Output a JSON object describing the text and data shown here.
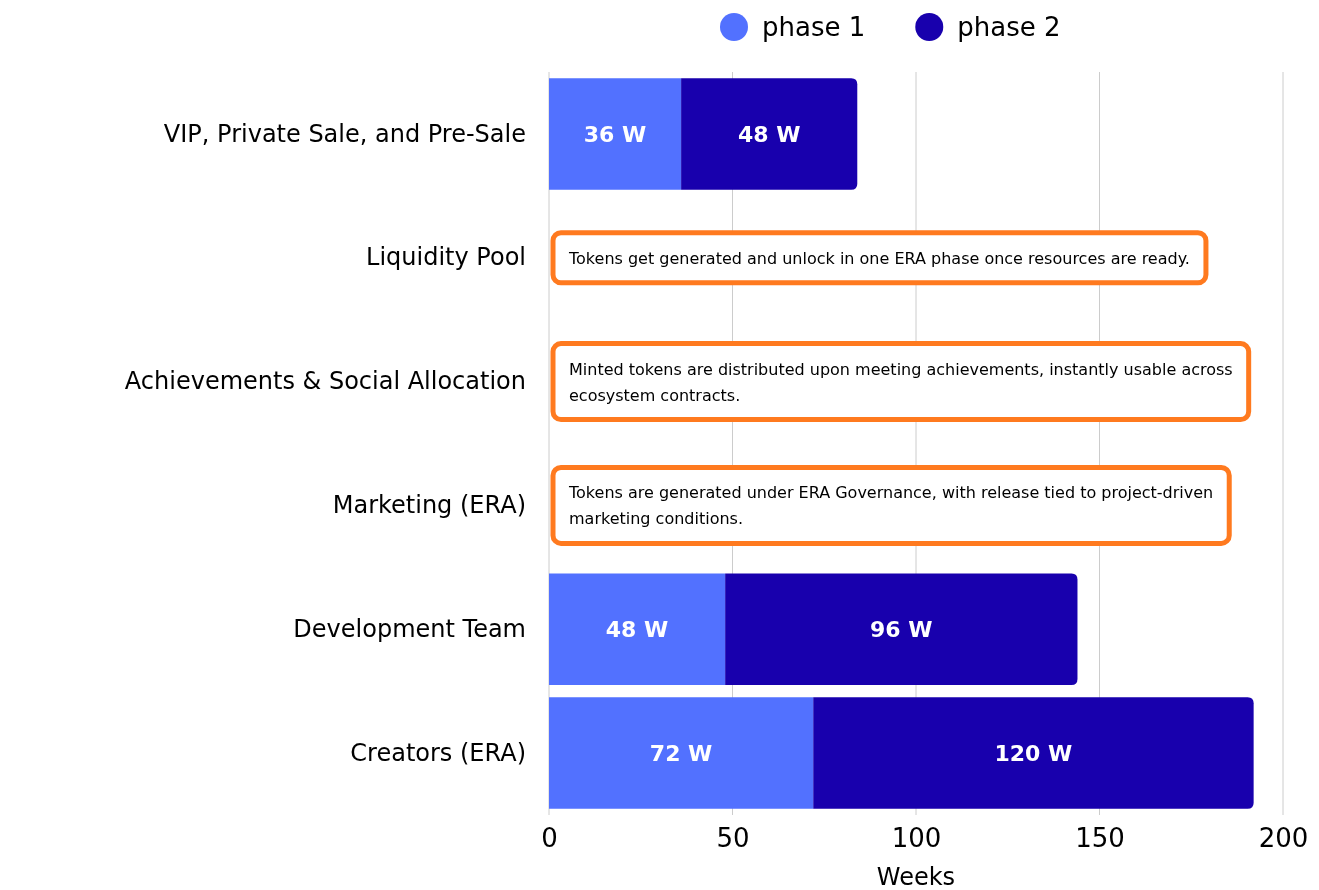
{
  "chart_data": {
    "type": "bar",
    "orientation": "horizontal",
    "stacked": true,
    "categories": [
      "VIP, Private Sale, and Pre-Sale",
      "Liquidity Pool",
      "Achievements & Social Allocation",
      "Marketing (ERA)",
      "Development Team",
      "Creators (ERA)"
    ],
    "series": [
      {
        "name": "phase 1",
        "color": "#5271ff",
        "values": [
          36,
          null,
          null,
          null,
          48,
          72
        ],
        "value_labels": [
          "36 W",
          null,
          null,
          null,
          "48 W",
          "72 W"
        ]
      },
      {
        "name": "phase 2",
        "color": "#1800ad",
        "values": [
          48,
          null,
          null,
          null,
          96,
          120
        ],
        "value_labels": [
          "48 W",
          null,
          null,
          null,
          "96 W",
          "120 W"
        ]
      }
    ],
    "xlabel": "Weeks",
    "xlim": [
      0,
      200
    ],
    "xticks": [
      0,
      50,
      100,
      150,
      200
    ],
    "grid": "x",
    "legend": "top",
    "annotations": [
      "Tokens get generated and unlock in one ERA phase once resources are ready.",
      "Minted tokens are distributed upon meeting achievements, instantly usable across ecosystem contracts.",
      "Tokens are generated under ERA Governance, with release tied to project-driven marketing conditions."
    ]
  }
}
